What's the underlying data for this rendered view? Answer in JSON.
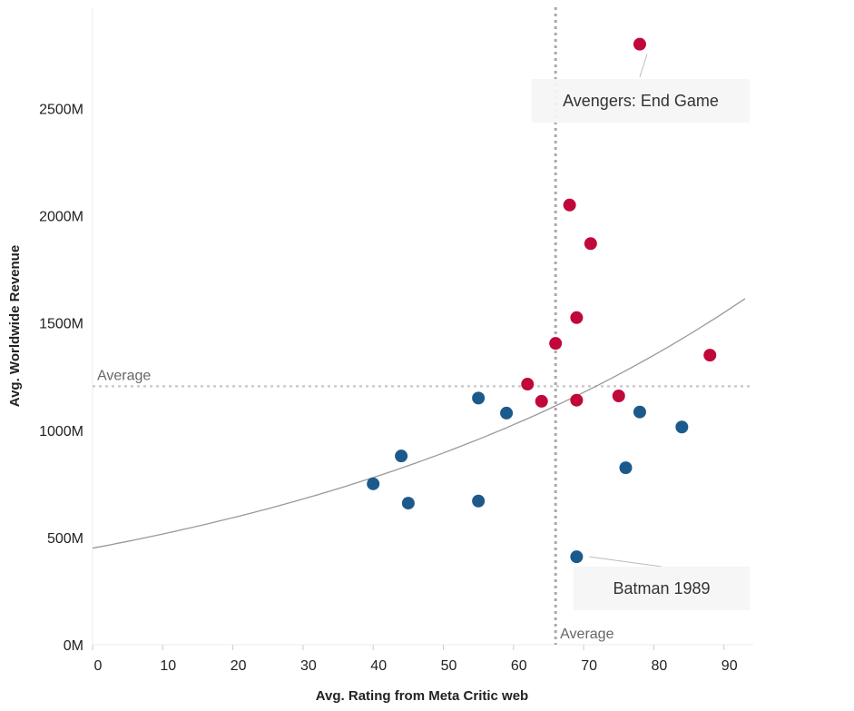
{
  "chart_data": {
    "type": "scatter",
    "xlabel": "Avg. Rating from Meta Critic web",
    "ylabel": "Avg. Worldwide Revenue",
    "xlim": [
      0,
      93
    ],
    "ylim": [
      0,
      2950
    ],
    "x_ticks": [
      "0",
      "10",
      "20",
      "30",
      "40",
      "50",
      "60",
      "70",
      "80",
      "90"
    ],
    "x_tick_values": [
      0,
      10,
      20,
      30,
      40,
      50,
      60,
      70,
      80,
      90
    ],
    "y_ticks": [
      "0M",
      "500M",
      "1000M",
      "1500M",
      "2000M",
      "2500M"
    ],
    "y_tick_values": [
      0,
      500,
      1000,
      1500,
      2000,
      2500
    ],
    "colors": {
      "above": "#c0083a",
      "below": "#1c5a8c",
      "trend": "#999999",
      "reference": "#aaaaaa"
    },
    "series": [
      {
        "color": "#c0083a",
        "points": [
          {
            "x": 78,
            "y": 2800
          },
          {
            "x": 68,
            "y": 2050
          },
          {
            "x": 71,
            "y": 1870
          },
          {
            "x": 69,
            "y": 1525
          },
          {
            "x": 66,
            "y": 1405
          },
          {
            "x": 88,
            "y": 1350
          },
          {
            "x": 62,
            "y": 1215
          },
          {
            "x": 64,
            "y": 1135
          },
          {
            "x": 69,
            "y": 1140
          },
          {
            "x": 75,
            "y": 1160
          }
        ]
      },
      {
        "color": "#1c5a8c",
        "points": [
          {
            "x": 55,
            "y": 1150
          },
          {
            "x": 59,
            "y": 1080
          },
          {
            "x": 78,
            "y": 1085
          },
          {
            "x": 84,
            "y": 1015
          },
          {
            "x": 44,
            "y": 880
          },
          {
            "x": 76,
            "y": 825
          },
          {
            "x": 40,
            "y": 750
          },
          {
            "x": 55,
            "y": 670
          },
          {
            "x": 45,
            "y": 660
          },
          {
            "x": 69,
            "y": 410
          }
        ]
      }
    ],
    "trend_line": {
      "type": "exponential",
      "intercept": 450,
      "growth_rate": 0.01373
    },
    "reference_lines": [
      {
        "axis": "x",
        "value": 66,
        "label": "Average"
      },
      {
        "axis": "y",
        "value": 1205,
        "label": "Average"
      }
    ],
    "annotations": [
      {
        "text": "Avengers: End Game",
        "x": 78,
        "y": 2800
      },
      {
        "text": "Batman 1989",
        "x": 69,
        "y": 410
      }
    ]
  }
}
